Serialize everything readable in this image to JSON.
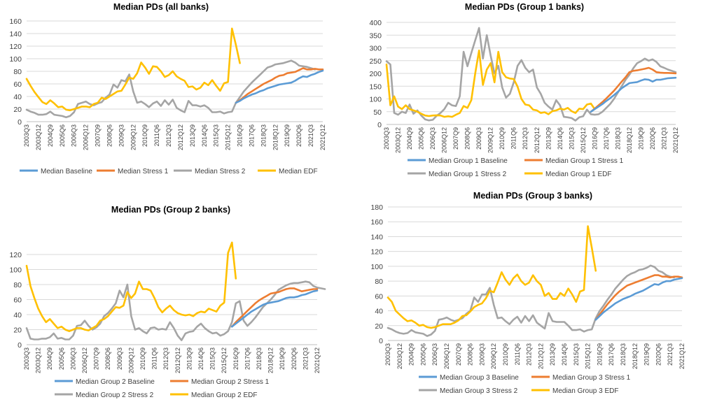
{
  "colors": {
    "baseline": "#5B9BD5",
    "stress1": "#ED7D31",
    "stress2": "#A5A5A5",
    "edf": "#FFC000"
  },
  "x_tick_labels": [
    "2003Q3",
    "2003Q12",
    "2004Q9",
    "2005Q6",
    "2006Q3",
    "2006Q12",
    "2007Q9",
    "2008Q6",
    "2009Q3",
    "2009Q12",
    "2010Q9",
    "2011Q6",
    "2012Q3",
    "2012Q12",
    "2013Q9",
    "2014Q6",
    "2015Q3",
    "2015Q12",
    "2016Q9",
    "2017Q6",
    "2018Q3",
    "2018Q12",
    "2019Q9",
    "2020Q6",
    "2021Q3",
    "2021Q12"
  ],
  "chart_data": [
    {
      "type": "line",
      "title": "Median PDs (all banks)",
      "ylim": [
        0,
        160
      ],
      "yticks": [
        0,
        20,
        40,
        60,
        80,
        100,
        120,
        140,
        160
      ],
      "legend_position": "bottom",
      "series": [
        {
          "name": "Median Baseline",
          "key": "baseline",
          "t0": 53,
          "values": [
            30,
            33,
            37,
            40,
            43,
            45,
            48,
            50,
            53,
            55,
            57,
            59,
            60,
            61,
            62,
            65,
            69,
            72,
            71,
            74,
            76,
            79,
            81
          ]
        },
        {
          "name": "Median Stress 1",
          "key": "stress1",
          "t0": 53,
          "values": [
            30,
            34,
            39,
            44,
            48,
            52,
            56,
            60,
            63,
            66,
            70,
            73,
            74,
            77,
            78,
            79,
            82,
            85,
            83,
            83,
            84,
            83,
            83
          ]
        },
        {
          "name": "Median Stress 2",
          "key": "stress2",
          "t0": 0,
          "values": [
            19,
            16,
            14,
            11,
            11,
            12,
            16,
            11,
            10,
            9,
            7,
            9,
            15,
            28,
            30,
            32,
            28,
            26,
            29,
            31,
            38,
            43,
            59,
            54,
            66,
            64,
            75,
            48,
            30,
            32,
            28,
            23,
            29,
            32,
            25,
            34,
            27,
            35,
            22,
            18,
            15,
            33,
            26,
            26,
            24,
            26,
            22,
            15,
            15,
            16,
            13,
            15,
            16,
            30,
            39,
            48,
            55,
            62,
            68,
            74,
            80,
            86,
            88,
            91,
            92,
            93,
            95,
            97,
            94,
            89,
            88,
            87,
            85,
            83
          ]
        },
        {
          "name": "Median EDF",
          "key": "edf",
          "t0": 0,
          "values": [
            68,
            57,
            47,
            39,
            31,
            28,
            34,
            29,
            23,
            24,
            19,
            18,
            20,
            22,
            24,
            24,
            23,
            28,
            30,
            38,
            36,
            40,
            44,
            48,
            49,
            59,
            70,
            68,
            77,
            94,
            86,
            76,
            88,
            87,
            80,
            71,
            74,
            80,
            72,
            68,
            65,
            55,
            56,
            51,
            54,
            62,
            58,
            66,
            57,
            49,
            61,
            63,
            148,
            122,
            93
          ]
        }
      ]
    },
    {
      "type": "line",
      "title": "Median PDs (Group 1 banks)",
      "ylim": [
        0,
        400
      ],
      "yticks": [
        0,
        50,
        100,
        150,
        200,
        250,
        300,
        350,
        400
      ],
      "legend_position": "bottom",
      "series": [
        {
          "name": "Median Group 1 Baseline",
          "key": "baseline",
          "t0": 53,
          "values": [
            50,
            60,
            70,
            80,
            92,
            103,
            115,
            128,
            142,
            152,
            162,
            164,
            166,
            172,
            177,
            175,
            168,
            175,
            175,
            178,
            181,
            182,
            183
          ]
        },
        {
          "name": "Median Group 1 Stress 1",
          "key": "stress1",
          "t0": 53,
          "values": [
            50,
            62,
            75,
            88,
            102,
            117,
            132,
            150,
            168,
            185,
            205,
            210,
            212,
            215,
            218,
            222,
            215,
            205,
            203,
            202,
            202,
            201,
            200
          ]
        },
        {
          "name": "Median Group 1 Stress 2",
          "key": "stress2",
          "t0": 0,
          "values": [
            248,
            235,
            45,
            38,
            50,
            45,
            78,
            42,
            55,
            35,
            20,
            16,
            18,
            34,
            45,
            60,
            85,
            75,
            72,
            110,
            285,
            228,
            280,
            330,
            378,
            258,
            350,
            270,
            200,
            230,
            145,
            105,
            120,
            165,
            230,
            252,
            222,
            205,
            215,
            145,
            120,
            85,
            70,
            58,
            95,
            75,
            30,
            28,
            25,
            15,
            28,
            32,
            58,
            40,
            38,
            40,
            50,
            65,
            80,
            100,
            125,
            150,
            175,
            195,
            220,
            240,
            248,
            258,
            250,
            255,
            245,
            228,
            222,
            215,
            210,
            205
          ]
        },
        {
          "name": "Median Group 1 EDF",
          "key": "edf",
          "t0": 0,
          "values": [
            235,
            75,
            110,
            70,
            60,
            75,
            60,
            55,
            50,
            42,
            35,
            33,
            35,
            36,
            35,
            30,
            32,
            30,
            38,
            45,
            72,
            65,
            95,
            200,
            290,
            155,
            215,
            240,
            165,
            285,
            205,
            185,
            180,
            178,
            148,
            100,
            78,
            75,
            58,
            55,
            45,
            48,
            40,
            52,
            55,
            62,
            58,
            65,
            52,
            45,
            62,
            60,
            78,
            82,
            60
          ]
        }
      ]
    },
    {
      "type": "line",
      "title": "Median PDs (Group 2 banks)",
      "ylim": [
        0,
        120
      ],
      "yticks": [
        0,
        20,
        40,
        60,
        80,
        100,
        120
      ],
      "legend_position": "bottom",
      "series": [
        {
          "name": "Median Group 2 Baseline",
          "key": "baseline",
          "t0": 53,
          "values": [
            24,
            28,
            32,
            36,
            40,
            44,
            47,
            50,
            53,
            55,
            56,
            57,
            58,
            60,
            62,
            63,
            63,
            64,
            66,
            67,
            69,
            71,
            72
          ]
        },
        {
          "name": "Median Group 2 Stress 1",
          "key": "stress1",
          "t0": 53,
          "values": [
            24,
            30,
            35,
            40,
            45,
            50,
            55,
            59,
            62,
            65,
            68,
            69,
            70,
            72,
            74,
            75,
            75,
            73,
            71,
            72,
            73,
            74,
            74
          ]
        },
        {
          "name": "Median Group 2 Stress 2",
          "key": "stress2",
          "t0": 0,
          "values": [
            22,
            8,
            7,
            7,
            8,
            8,
            10,
            15,
            8,
            9,
            7,
            7,
            12,
            25,
            26,
            32,
            25,
            20,
            23,
            28,
            38,
            42,
            48,
            55,
            72,
            63,
            80,
            38,
            20,
            22,
            18,
            15,
            22,
            23,
            20,
            21,
            20,
            30,
            22,
            12,
            6,
            15,
            17,
            18,
            24,
            28,
            22,
            18,
            15,
            16,
            12,
            14,
            18,
            30,
            55,
            58,
            32,
            25,
            30,
            36,
            43,
            50,
            55,
            60,
            66,
            73,
            76,
            79,
            81,
            82,
            82,
            83,
            84,
            83,
            78,
            76,
            75,
            74
          ]
        },
        {
          "name": "Median Group 2 EDF",
          "key": "edf",
          "t0": 0,
          "values": [
            105,
            78,
            62,
            48,
            38,
            30,
            34,
            28,
            22,
            24,
            20,
            18,
            20,
            22,
            22,
            20,
            19,
            22,
            25,
            32,
            34,
            38,
            44,
            50,
            49,
            52,
            70,
            62,
            68,
            84,
            74,
            74,
            72,
            62,
            50,
            43,
            48,
            52,
            46,
            42,
            40,
            39,
            40,
            38,
            42,
            44,
            43,
            48,
            46,
            44,
            52,
            56,
            122,
            136,
            88
          ]
        }
      ]
    },
    {
      "type": "line",
      "title": "Median PDs (Group 3 banks)",
      "ylim": [
        0,
        180
      ],
      "yticks": [
        0,
        20,
        40,
        60,
        80,
        100,
        120,
        140,
        160,
        180
      ],
      "legend_position": "bottom",
      "series": [
        {
          "name": "Median Group 3 Baseline",
          "key": "baseline",
          "t0": 53,
          "values": [
            28,
            33,
            38,
            42,
            46,
            50,
            53,
            56,
            58,
            60,
            63,
            65,
            67,
            70,
            73,
            76,
            75,
            78,
            80,
            80,
            82,
            83,
            84
          ]
        },
        {
          "name": "Median Group 3 Stress 1",
          "key": "stress1",
          "t0": 53,
          "values": [
            28,
            35,
            42,
            49,
            55,
            61,
            66,
            70,
            74,
            76,
            78,
            80,
            82,
            84,
            86,
            88,
            88,
            86,
            86,
            85,
            86,
            86,
            85
          ]
        },
        {
          "name": "Median Group 3 Stress 2",
          "key": "stress2",
          "t0": 0,
          "values": [
            17,
            15,
            12,
            10,
            9,
            10,
            14,
            11,
            10,
            9,
            6,
            8,
            13,
            28,
            29,
            31,
            28,
            26,
            28,
            30,
            36,
            40,
            58,
            52,
            62,
            62,
            71,
            48,
            30,
            31,
            26,
            22,
            28,
            32,
            24,
            33,
            26,
            34,
            24,
            20,
            16,
            37,
            26,
            25,
            25,
            25,
            20,
            14,
            14,
            15,
            12,
            14,
            15,
            30,
            40,
            47,
            55,
            62,
            70,
            76,
            82,
            87,
            90,
            92,
            95,
            96,
            98,
            101,
            99,
            94,
            92,
            88,
            86,
            85
          ]
        },
        {
          "name": "Median Group 3 EDF",
          "key": "edf",
          "t0": 0,
          "values": [
            58,
            52,
            40,
            35,
            30,
            26,
            27,
            24,
            20,
            21,
            18,
            17,
            18,
            20,
            22,
            22,
            22,
            24,
            27,
            33,
            34,
            39,
            45,
            48,
            50,
            57,
            67,
            65,
            78,
            92,
            82,
            75,
            84,
            89,
            80,
            75,
            78,
            88,
            80,
            75,
            60,
            64,
            56,
            56,
            64,
            60,
            70,
            62,
            52,
            66,
            68,
            154,
            125,
            94
          ]
        }
      ]
    }
  ]
}
